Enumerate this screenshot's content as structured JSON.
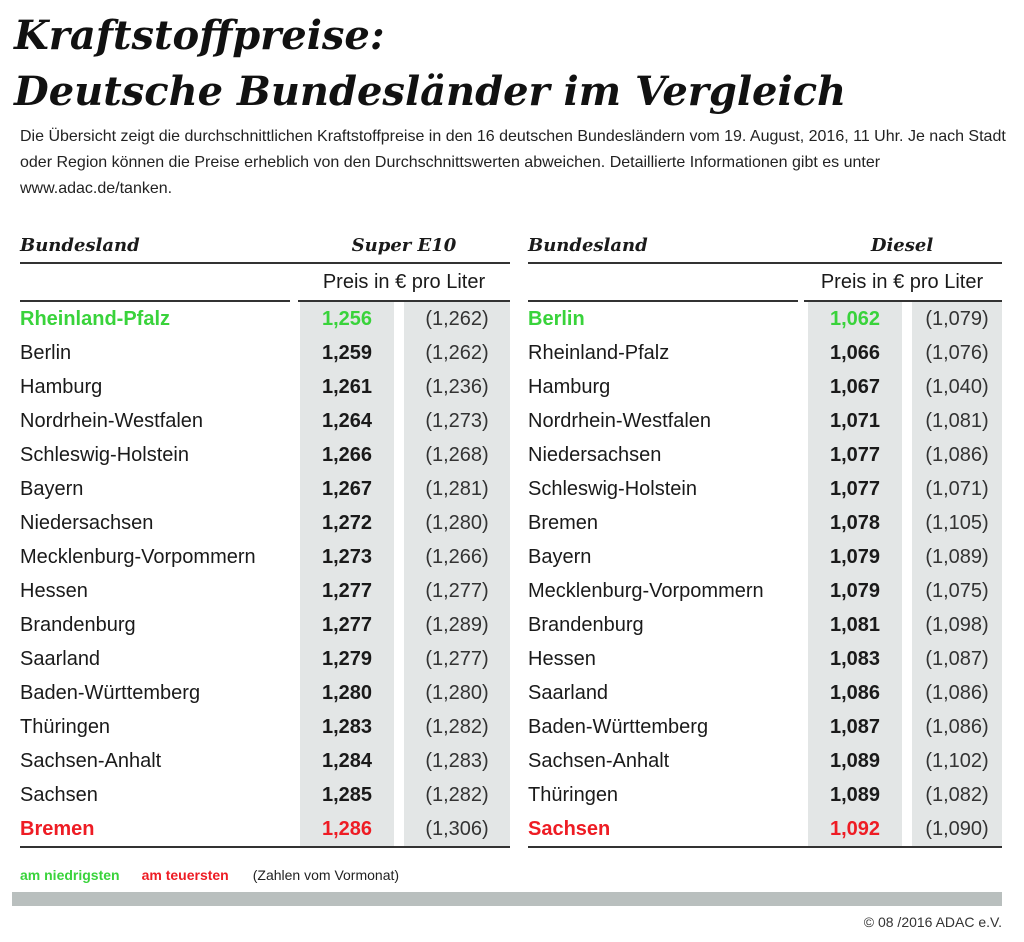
{
  "title": {
    "line1": "Kraftstoffpreise:",
    "line2": "Deutsche Bundesländer im Vergleich"
  },
  "intro": "Die Übersicht zeigt die durchschnittlichen Kraftstoffpreise in den 16 deutschen Bundesländern vom 19. August, 2016, 11 Uhr. Je nach Stadt oder Region können die Preise erheblich von den Durchschnittswerten abweichen. Detaillierte Informationen gibt es unter www.adac.de/tanken.",
  "colors": {
    "lowest": "#39d33b",
    "highest": "#ee1c24",
    "shade": "#e3e6e6",
    "footer_bar": "#b9bfbe"
  },
  "tables": {
    "super": {
      "land_header": "Bundesland",
      "fuel_header": "Super E10",
      "unit_header": "Preis in € pro Liter",
      "rows": [
        {
          "land": "Rheinland-Pfalz",
          "price": "1,256",
          "prev": "(1,262)",
          "mark": "low"
        },
        {
          "land": "Berlin",
          "price": "1,259",
          "prev": "(1,262)",
          "mark": ""
        },
        {
          "land": "Hamburg",
          "price": "1,261",
          "prev": "(1,236)",
          "mark": ""
        },
        {
          "land": "Nordrhein-Westfalen",
          "price": "1,264",
          "prev": "(1,273)",
          "mark": ""
        },
        {
          "land": "Schleswig-Holstein",
          "price": "1,266",
          "prev": "(1,268)",
          "mark": ""
        },
        {
          "land": "Bayern",
          "price": "1,267",
          "prev": "(1,281)",
          "mark": ""
        },
        {
          "land": "Niedersachsen",
          "price": "1,272",
          "prev": "(1,280)",
          "mark": ""
        },
        {
          "land": "Mecklenburg-Vorpommern",
          "price": "1,273",
          "prev": "(1,266)",
          "mark": ""
        },
        {
          "land": "Hessen",
          "price": "1,277",
          "prev": "(1,277)",
          "mark": ""
        },
        {
          "land": "Brandenburg",
          "price": "1,277",
          "prev": "(1,289)",
          "mark": ""
        },
        {
          "land": "Saarland",
          "price": "1,279",
          "prev": "(1,277)",
          "mark": ""
        },
        {
          "land": "Baden-Württemberg",
          "price": "1,280",
          "prev": "(1,280)",
          "mark": ""
        },
        {
          "land": "Thüringen",
          "price": "1,283",
          "prev": "(1,282)",
          "mark": ""
        },
        {
          "land": "Sachsen-Anhalt",
          "price": "1,284",
          "prev": "(1,283)",
          "mark": ""
        },
        {
          "land": "Sachsen",
          "price": "1,285",
          "prev": "(1,282)",
          "mark": ""
        },
        {
          "land": "Bremen",
          "price": "1,286",
          "prev": "(1,306)",
          "mark": "high"
        }
      ]
    },
    "diesel": {
      "land_header": "Bundesland",
      "fuel_header": "Diesel",
      "unit_header": "Preis in € pro Liter",
      "rows": [
        {
          "land": "Berlin",
          "price": "1,062",
          "prev": "(1,079)",
          "mark": "low"
        },
        {
          "land": "Rheinland-Pfalz",
          "price": "1,066",
          "prev": "(1,076)",
          "mark": ""
        },
        {
          "land": "Hamburg",
          "price": "1,067",
          "prev": "(1,040)",
          "mark": ""
        },
        {
          "land": "Nordrhein-Westfalen",
          "price": "1,071",
          "prev": "(1,081)",
          "mark": ""
        },
        {
          "land": "Niedersachsen",
          "price": "1,077",
          "prev": "(1,086)",
          "mark": ""
        },
        {
          "land": "Schleswig-Holstein",
          "price": "1,077",
          "prev": "(1,071)",
          "mark": ""
        },
        {
          "land": "Bremen",
          "price": "1,078",
          "prev": "(1,105)",
          "mark": ""
        },
        {
          "land": "Bayern",
          "price": "1,079",
          "prev": "(1,089)",
          "mark": ""
        },
        {
          "land": "Mecklenburg-Vorpommern",
          "price": "1,079",
          "prev": "(1,075)",
          "mark": ""
        },
        {
          "land": "Brandenburg",
          "price": "1,081",
          "prev": "(1,098)",
          "mark": ""
        },
        {
          "land": "Hessen",
          "price": "1,083",
          "prev": "(1,087)",
          "mark": ""
        },
        {
          "land": "Saarland",
          "price": "1,086",
          "prev": "(1,086)",
          "mark": ""
        },
        {
          "land": "Baden-Württemberg",
          "price": "1,087",
          "prev": "(1,086)",
          "mark": ""
        },
        {
          "land": "Sachsen-Anhalt",
          "price": "1,089",
          "prev": "(1,102)",
          "mark": ""
        },
        {
          "land": "Thüringen",
          "price": "1,089",
          "prev": "(1,082)",
          "mark": ""
        },
        {
          "land": "Sachsen",
          "price": "1,092",
          "prev": "(1,090)",
          "mark": "high"
        }
      ]
    }
  },
  "legend": {
    "lowest_label": "am niedrigsten",
    "highest_label": "am teuersten",
    "note": "(Zahlen vom Vormonat)"
  },
  "copyright": "© 08 /2016 ADAC e.V."
}
